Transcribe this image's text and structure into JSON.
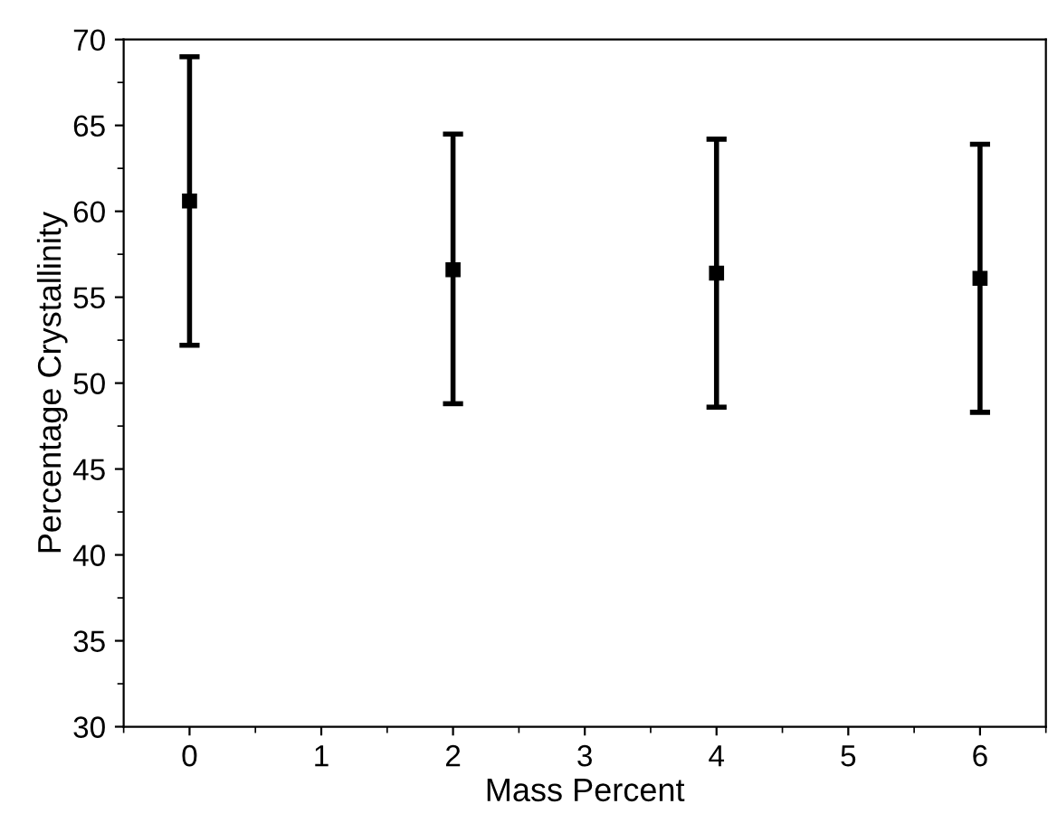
{
  "chart_data": {
    "type": "scatter",
    "xlabel": "Mass Percent",
    "ylabel": "Percentage Crystallinity",
    "x": [
      0,
      2,
      4,
      6
    ],
    "series": [
      {
        "color": "#000000",
        "values": [
          60.6,
          56.6,
          56.4,
          56.1
        ],
        "errors": [
          [
            52.2,
            69.0
          ],
          [
            48.8,
            64.5
          ],
          [
            48.6,
            64.2
          ],
          [
            48.3,
            63.9
          ]
        ]
      }
    ],
    "marker": "square",
    "xlim": [
      -0.5,
      6.5
    ],
    "xticks": [
      0,
      1,
      2,
      3,
      4,
      5,
      6
    ],
    "ylim": [
      30,
      70
    ],
    "yticks": [
      30,
      35,
      40,
      45,
      50,
      55,
      60,
      65,
      70
    ],
    "grid": false,
    "legend": false
  }
}
